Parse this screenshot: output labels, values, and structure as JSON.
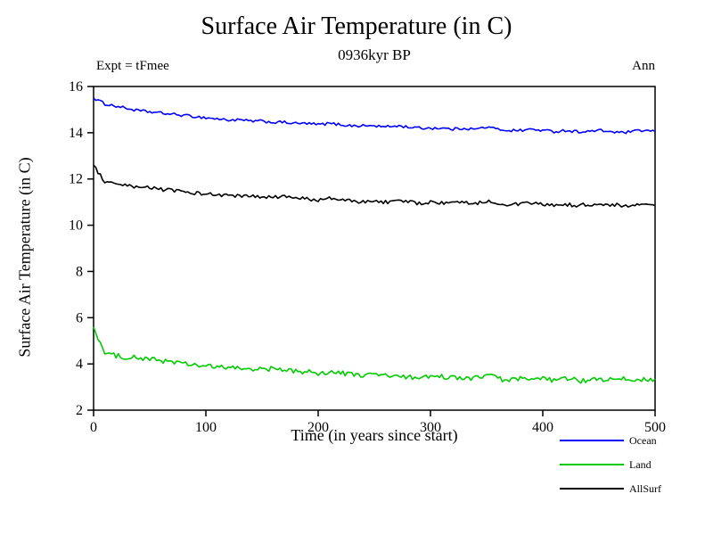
{
  "chart_data": {
    "type": "line",
    "title": "Surface Air Temperature (in C)",
    "subtitle": "0936kyr BP",
    "annotation_left": "Expt = tFmee",
    "annotation_right": "Ann",
    "xlabel": "Time (in years since start)",
    "ylabel": "Surface Air Temperature (in C)",
    "xlim": [
      0,
      500
    ],
    "ylim": [
      2,
      16
    ],
    "xticks": [
      0,
      100,
      200,
      300,
      400,
      500
    ],
    "yticks": [
      2,
      4,
      6,
      8,
      10,
      12,
      14,
      16
    ],
    "grid": false,
    "legend_position": "bottom-right",
    "x_step": 10,
    "axis_color": "#000000",
    "series": [
      {
        "name": "Ocean",
        "color": "#0000ff",
        "noise": 0.06,
        "values": [
          15.5,
          15.25,
          15.15,
          15.05,
          14.95,
          14.9,
          14.85,
          14.8,
          14.75,
          14.7,
          14.65,
          14.6,
          14.55,
          14.55,
          14.5,
          14.5,
          14.45,
          14.45,
          14.4,
          14.4,
          14.35,
          14.4,
          14.35,
          14.3,
          14.3,
          14.3,
          14.25,
          14.3,
          14.25,
          14.2,
          14.2,
          14.2,
          14.15,
          14.2,
          14.15,
          14.25,
          14.15,
          14.1,
          14.1,
          14.15,
          14.1,
          14.05,
          14.1,
          14.05,
          14.05,
          14.1,
          14.05,
          14.0,
          14.05,
          14.1,
          14.05
        ]
      },
      {
        "name": "Land",
        "color": "#00cc00",
        "noise": 0.11,
        "values": [
          5.6,
          4.45,
          4.35,
          4.3,
          4.25,
          4.2,
          4.15,
          4.1,
          4.0,
          3.95,
          3.9,
          3.85,
          3.85,
          3.8,
          3.8,
          3.75,
          3.8,
          3.7,
          3.7,
          3.65,
          3.6,
          3.65,
          3.6,
          3.55,
          3.5,
          3.55,
          3.5,
          3.45,
          3.4,
          3.45,
          3.4,
          3.45,
          3.4,
          3.35,
          3.4,
          3.55,
          3.35,
          3.3,
          3.35,
          3.3,
          3.35,
          3.3,
          3.35,
          3.3,
          3.25,
          3.35,
          3.3,
          3.35,
          3.3,
          3.35,
          3.35
        ]
      },
      {
        "name": "AllSurf",
        "color": "#000000",
        "noise": 0.08,
        "values": [
          12.6,
          11.85,
          11.75,
          11.7,
          11.6,
          11.65,
          11.55,
          11.5,
          11.45,
          11.4,
          11.35,
          11.3,
          11.3,
          11.25,
          11.25,
          11.2,
          11.2,
          11.25,
          11.15,
          11.15,
          11.1,
          11.15,
          11.1,
          11.05,
          11.0,
          11.05,
          11.0,
          11.05,
          11.0,
          10.95,
          11.0,
          10.95,
          10.95,
          11.0,
          10.95,
          11.05,
          10.95,
          10.9,
          10.9,
          10.95,
          10.9,
          10.85,
          10.9,
          10.85,
          10.9,
          10.85,
          10.9,
          10.85,
          10.85,
          10.9,
          10.85
        ]
      }
    ]
  }
}
